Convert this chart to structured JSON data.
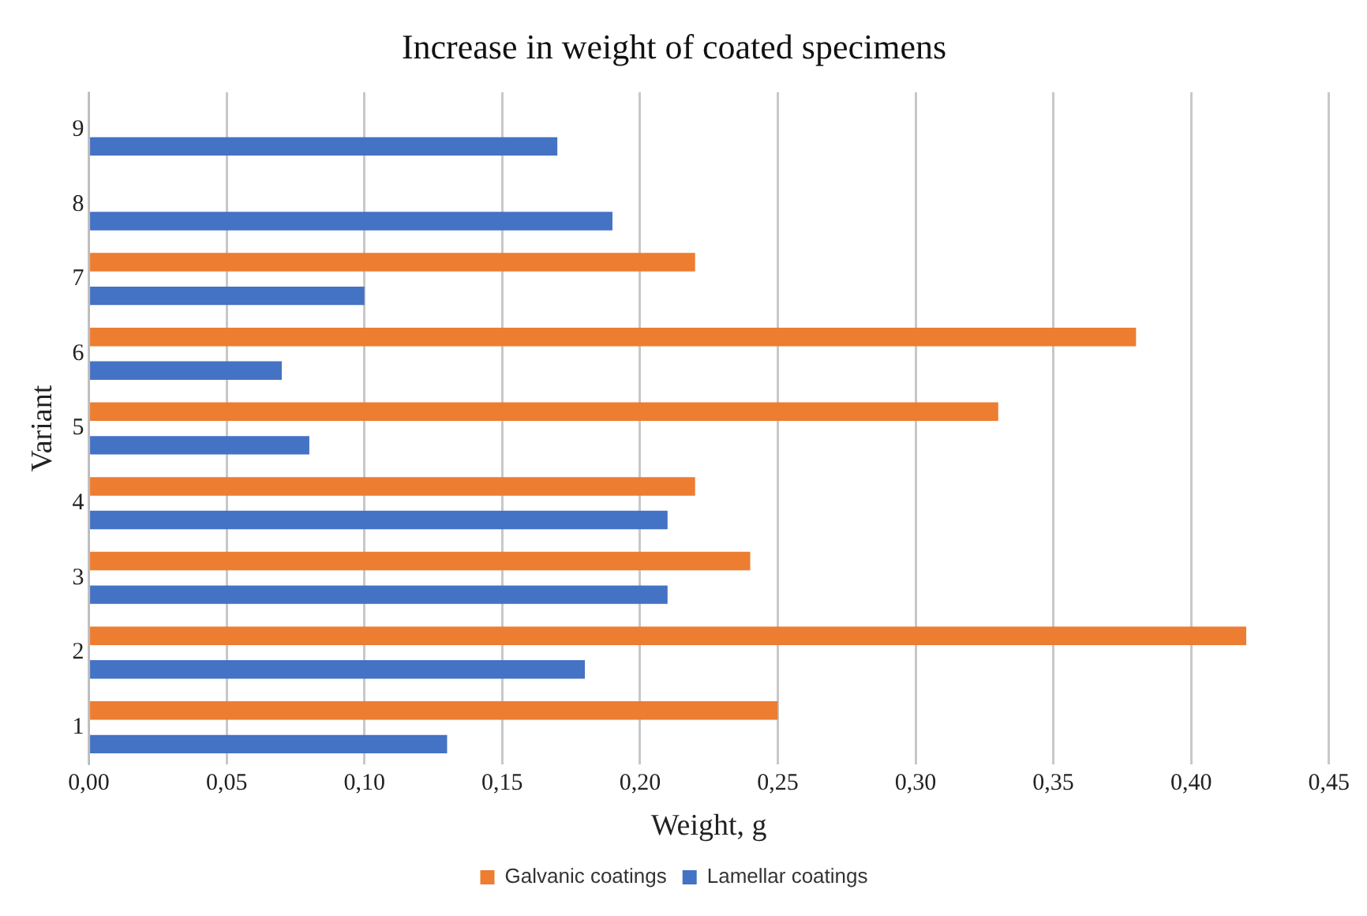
{
  "chart_data": {
    "type": "bar",
    "orientation": "horizontal",
    "title": "Increase in weight of coated specimens",
    "xlabel": "Weight, g",
    "ylabel": "Variant",
    "categories": [
      "9",
      "8",
      "7",
      "6",
      "5",
      "4",
      "3",
      "2",
      "1"
    ],
    "series": [
      {
        "name": "Galvanic coatings",
        "color": "#ed7d31",
        "values": [
          null,
          null,
          0.22,
          0.38,
          0.33,
          0.22,
          0.24,
          0.42,
          0.25
        ]
      },
      {
        "name": "Lamellar coatings",
        "color": "#4472c4",
        "values": [
          0.17,
          0.19,
          0.1,
          0.07,
          0.08,
          0.21,
          0.21,
          0.18,
          0.13
        ]
      }
    ],
    "xlim": [
      0,
      0.45
    ],
    "xticks": [
      {
        "value": 0,
        "label": "0,00"
      },
      {
        "value": 0.05,
        "label": "0,05"
      },
      {
        "value": 0.1,
        "label": "0,10"
      },
      {
        "value": 0.15,
        "label": "0,15"
      },
      {
        "value": 0.2,
        "label": "0,20"
      },
      {
        "value": 0.25,
        "label": "0,25"
      },
      {
        "value": 0.3,
        "label": "0,30"
      },
      {
        "value": 0.35,
        "label": "0,35"
      },
      {
        "value": 0.4,
        "label": "0,40"
      },
      {
        "value": 0.45,
        "label": "0,45"
      }
    ],
    "grid": "x",
    "legend": "bottom"
  }
}
